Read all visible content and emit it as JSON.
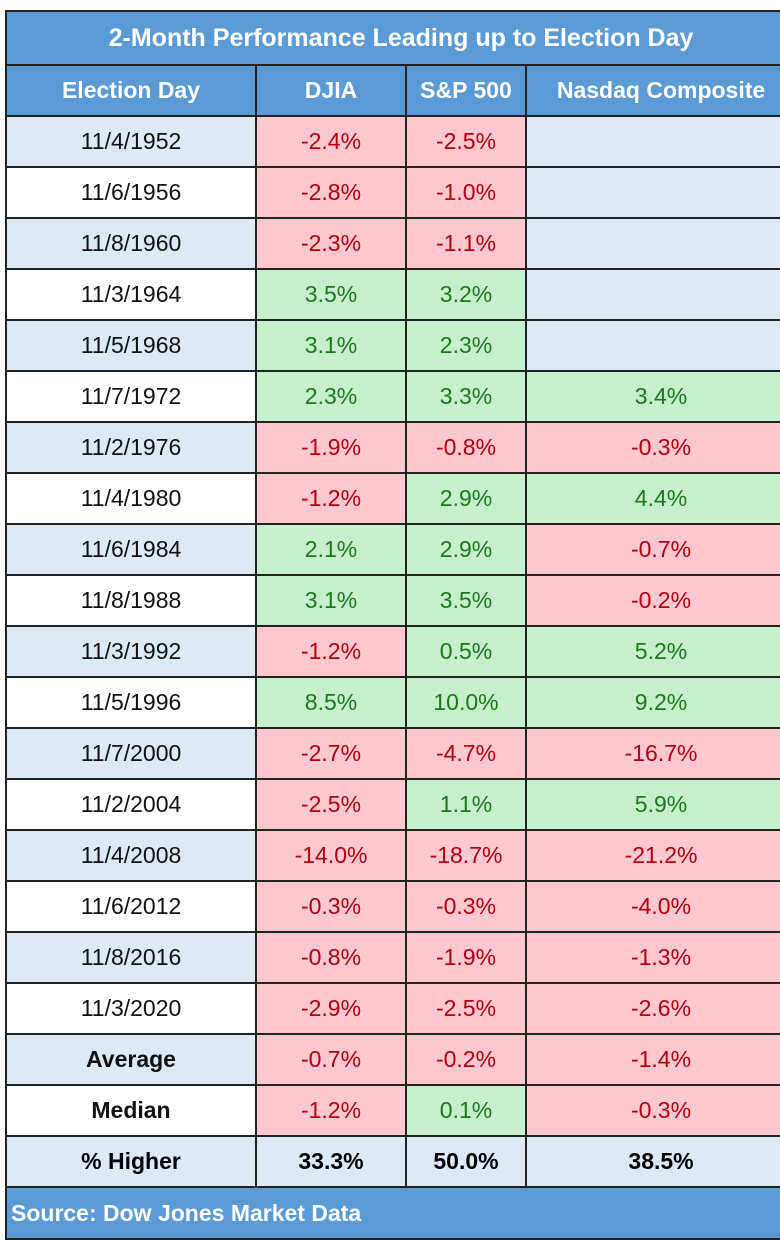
{
  "chart_data": {
    "type": "table",
    "title": "2-Month Performance Leading up to Election Day",
    "columns": [
      "Election Day",
      "DJIA",
      "S&P 500",
      "Nasdaq Composite"
    ],
    "rows": [
      [
        "11/4/1952",
        "-2.4%",
        "-2.5%",
        ""
      ],
      [
        "11/6/1956",
        "-2.8%",
        "-1.0%",
        ""
      ],
      [
        "11/8/1960",
        "-2.3%",
        "-1.1%",
        ""
      ],
      [
        "11/3/1964",
        "3.5%",
        "3.2%",
        ""
      ],
      [
        "11/5/1968",
        "3.1%",
        "2.3%",
        ""
      ],
      [
        "11/7/1972",
        "2.3%",
        "3.3%",
        "3.4%"
      ],
      [
        "11/2/1976",
        "-1.9%",
        "-0.8%",
        "-0.3%"
      ],
      [
        "11/4/1980",
        "-1.2%",
        "2.9%",
        "4.4%"
      ],
      [
        "11/6/1984",
        "2.1%",
        "2.9%",
        "-0.7%"
      ],
      [
        "11/8/1988",
        "3.1%",
        "3.5%",
        "-0.2%"
      ],
      [
        "11/3/1992",
        "-1.2%",
        "0.5%",
        "5.2%"
      ],
      [
        "11/5/1996",
        "8.5%",
        "10.0%",
        "9.2%"
      ],
      [
        "11/7/2000",
        "-2.7%",
        "-4.7%",
        "-16.7%"
      ],
      [
        "11/2/2004",
        "-2.5%",
        "1.1%",
        "5.9%"
      ],
      [
        "11/4/2008",
        "-14.0%",
        "-18.7%",
        "-21.2%"
      ],
      [
        "11/6/2012",
        "-0.3%",
        "-0.3%",
        "-4.0%"
      ],
      [
        "11/8/2016",
        "-0.8%",
        "-1.9%",
        "-1.3%"
      ],
      [
        "11/3/2020",
        "-2.9%",
        "-2.5%",
        "-2.6%"
      ]
    ],
    "summary": [
      [
        "Average",
        "-0.7%",
        "-0.2%",
        "-1.4%"
      ],
      [
        "Median",
        "-1.2%",
        "0.1%",
        "-0.3%"
      ],
      [
        "% Higher",
        "33.3%",
        "50.0%",
        "38.5%"
      ]
    ],
    "source": "Source: Dow Jones Market Data",
    "colors": {
      "header": "#5b9bd5",
      "negative_fill": "#ffc7ce",
      "negative_text": "#b00010",
      "positive_fill": "#c6efce",
      "positive_text": "#1a7a1a",
      "band": "#dde9f5"
    }
  }
}
